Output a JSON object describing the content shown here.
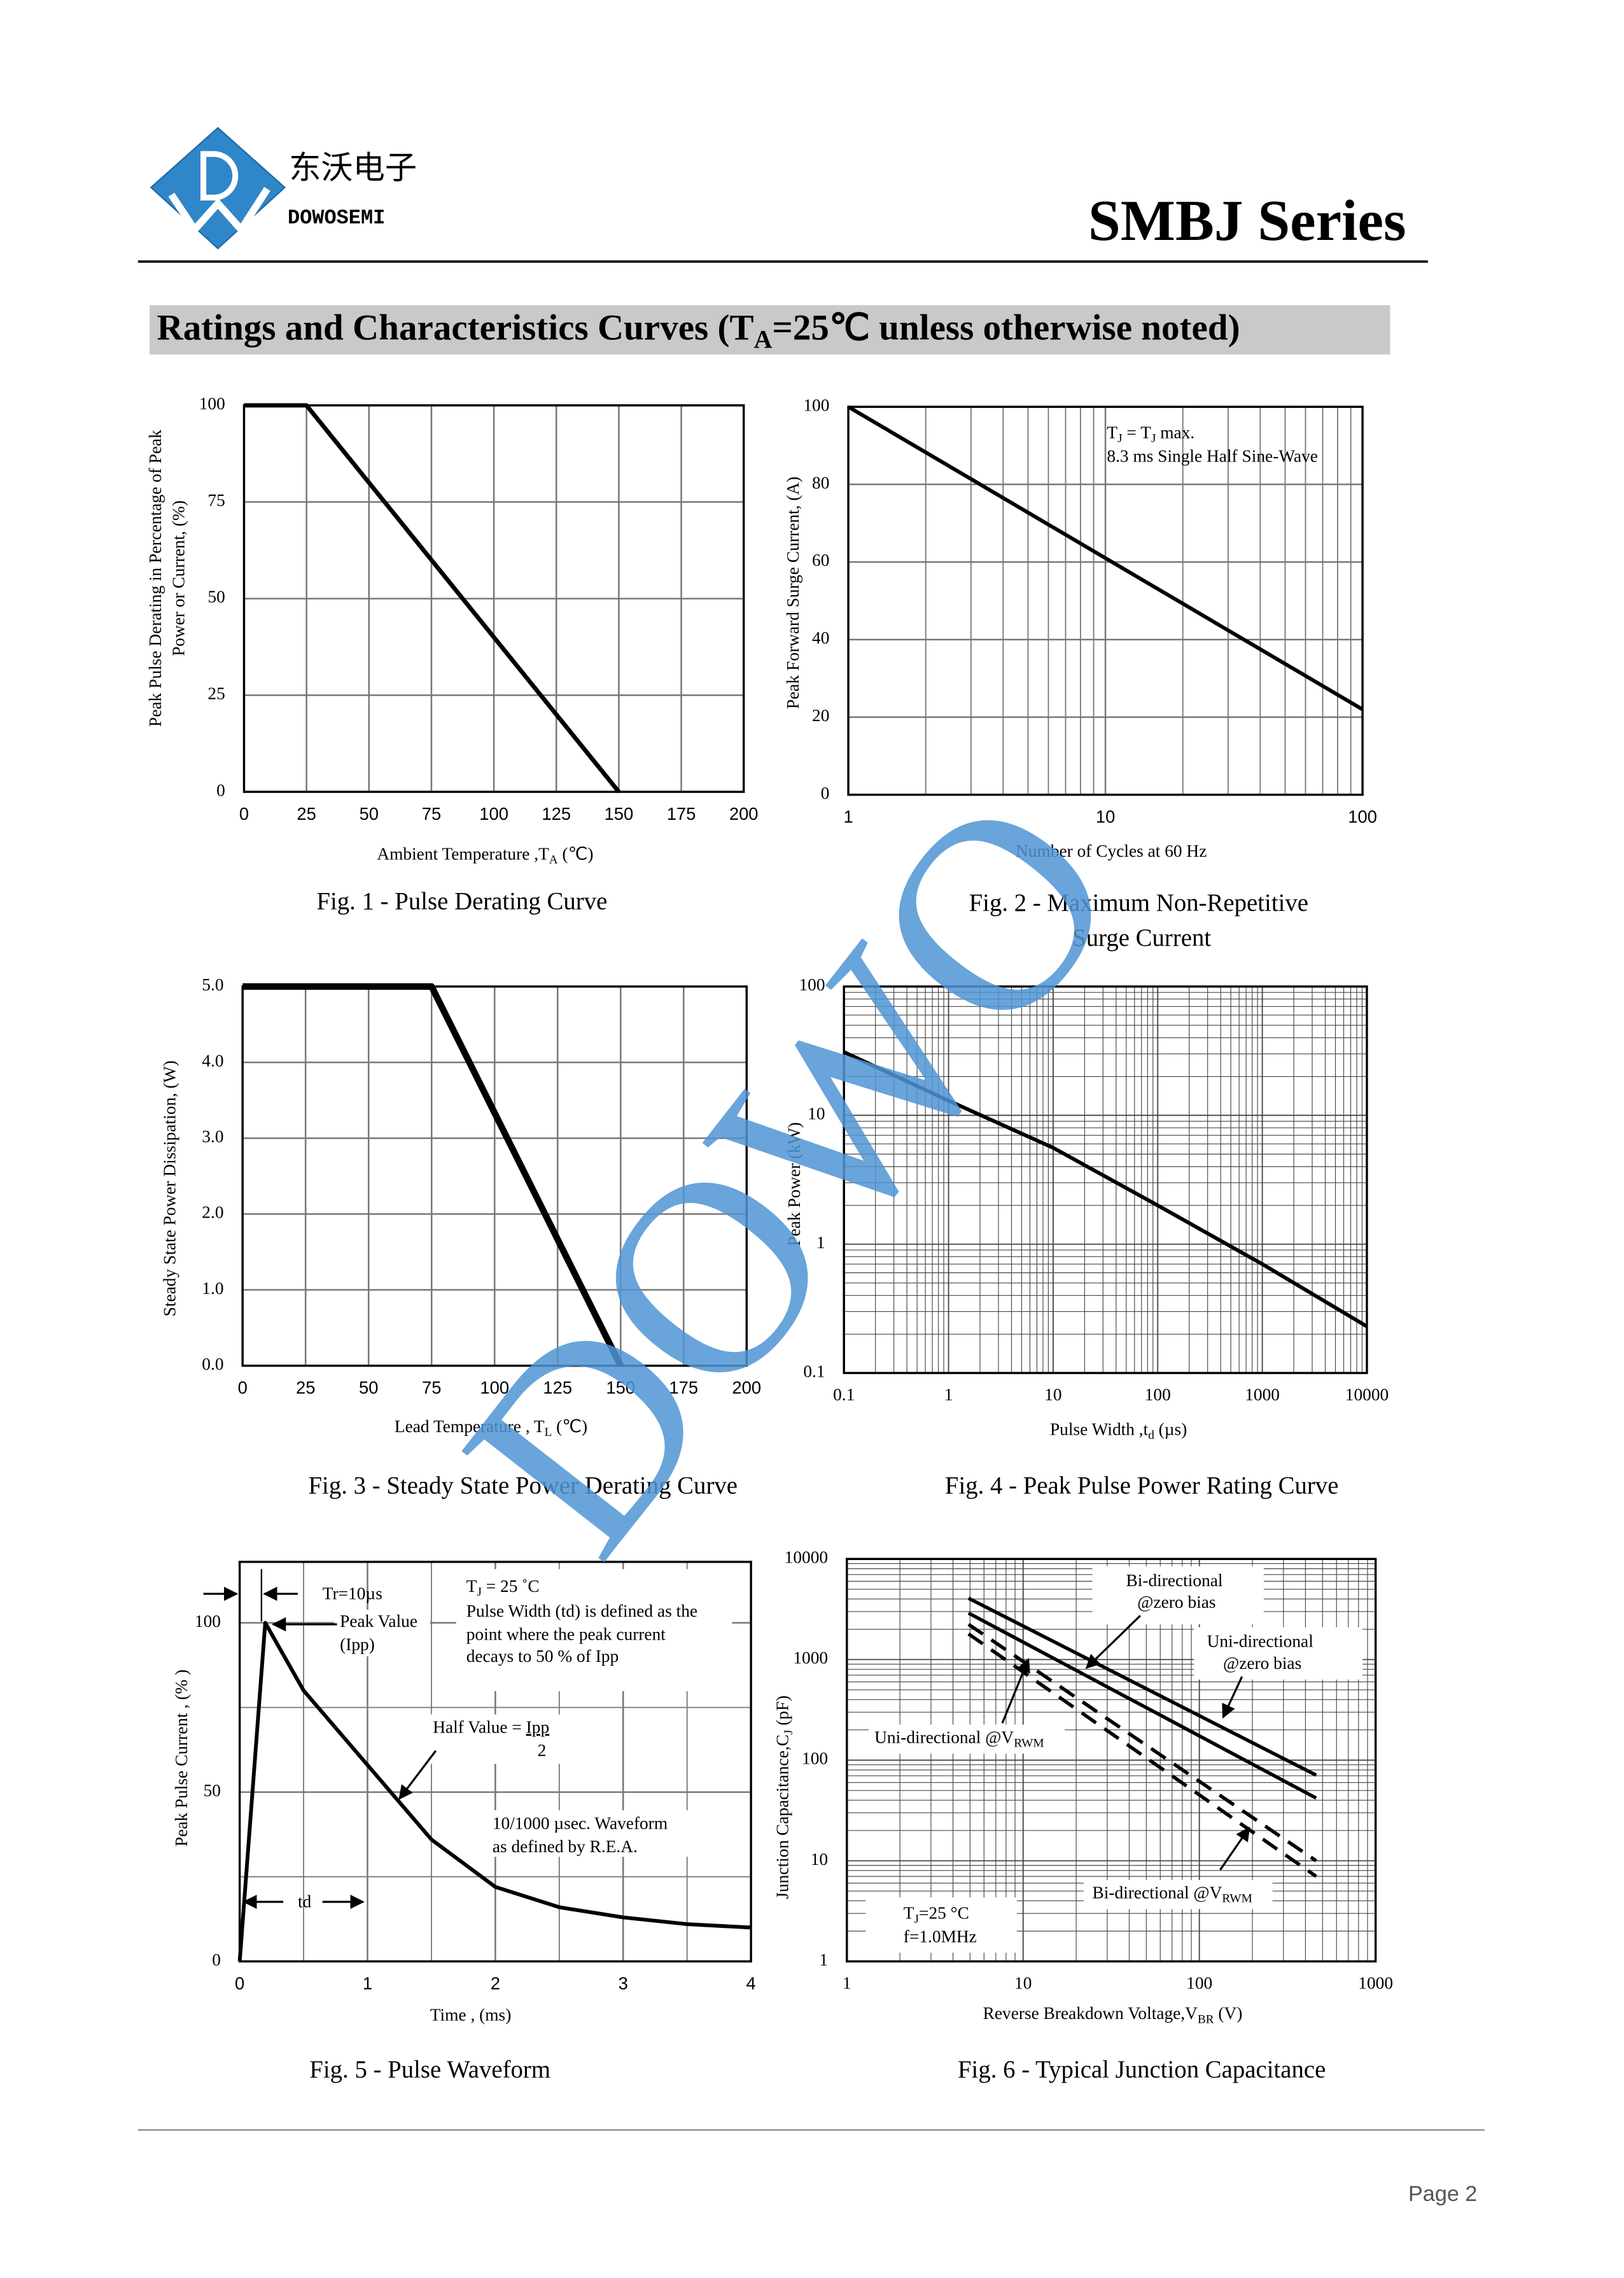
{
  "header": {
    "company_cn": "东沃电子",
    "company_en": "DOWOSEMI",
    "series": "SMBJ Series"
  },
  "section_title": [
    "Ratings and Characteristics Curves (T",
    {
      "sub": "A"
    },
    "=25℃  unless otherwise noted)"
  ],
  "watermark": "DOWO",
  "footer": {
    "page": "Page 2"
  },
  "chart_data": [
    {
      "type": "line",
      "title": "Fig. 1 - Pulse Derating Curve",
      "xlabel": [
        "Ambient Temperature ,T",
        {
          "sub": "A"
        },
        "  (℃)"
      ],
      "ylabel": "Peak Pulse Derating in Percentage of  Peak",
      "ylabel2": "Power or Current, (%)",
      "x": [
        0,
        25,
        150
      ],
      "values": [
        100,
        100,
        0
      ],
      "color": "#000000",
      "xlim": [
        0,
        200
      ],
      "xticks": [
        0,
        25,
        50,
        75,
        100,
        125,
        150,
        175,
        200
      ],
      "ylim": [
        0,
        100
      ],
      "yticks": [
        0,
        25,
        50,
        75,
        100
      ],
      "grid": true
    },
    {
      "type": "line",
      "title": "Fig. 2 - Maximum Non-Repetitive Surge Current",
      "xlabel": "Number of Cycles at 60 Hz",
      "ylabel": "Peak Forward Surge Current, (A)",
      "annotations": [
        [
          "T",
          {
            "sub": "J"
          },
          " = T",
          {
            "sub": "J"
          },
          " max."
        ],
        "8.3 ms Single Half Sine-Wave"
      ],
      "x": [
        1,
        100
      ],
      "values": [
        100,
        22
      ],
      "color": "#000000",
      "xscale": "log",
      "xlim": [
        1,
        100
      ],
      "xticks": [
        1,
        10,
        100
      ],
      "xminor": [
        2,
        3,
        4,
        5,
        6,
        7,
        8,
        9,
        20,
        30,
        40,
        50,
        60,
        70,
        80,
        90
      ],
      "ylim": [
        0,
        100
      ],
      "yticks": [
        0,
        20,
        40,
        60,
        80,
        100
      ],
      "grid": true
    },
    {
      "type": "line",
      "title": "Fig. 3 - Steady State Power Derating Curve",
      "xlabel": [
        "Lead Temperature , T",
        {
          "sub": "L"
        },
        "  (℃)"
      ],
      "ylabel": "Steady State Power Dissipation, (W)",
      "x": [
        0,
        75,
        150
      ],
      "values": [
        5,
        5,
        0
      ],
      "color": "#000000",
      "xlim": [
        0,
        200
      ],
      "xticks": [
        0,
        25,
        50,
        75,
        100,
        125,
        150,
        175,
        200
      ],
      "ylim": [
        0,
        5
      ],
      "yticks": [
        {
          "value": 0,
          "label": "0.0"
        },
        {
          "value": 1,
          "label": "1.0"
        },
        {
          "value": 2,
          "label": "2.0"
        },
        {
          "value": 3,
          "label": "3.0"
        },
        {
          "value": 4,
          "label": "4.0"
        },
        {
          "value": 5,
          "label": "5.0"
        }
      ],
      "grid": true
    },
    {
      "type": "line",
      "title": "Fig. 4 - Peak Pulse Power Rating Curve",
      "xlabel": [
        "Pulse Width ,t",
        {
          "sub": "d"
        },
        " (µs)"
      ],
      "ylabel": "Peak Power  (kW)",
      "x": [
        0.1,
        1,
        10,
        100,
        1000,
        10000
      ],
      "values": [
        31,
        13,
        5.6,
        2.0,
        0.7,
        0.23
      ],
      "color": "#000000",
      "xscale": "log",
      "yscale": "log",
      "xlim": [
        0.1,
        10000
      ],
      "xticks": [
        0.1,
        1,
        10,
        100,
        1000,
        10000
      ],
      "xminor": [
        0.2,
        0.3,
        0.4,
        0.5,
        0.6,
        0.7,
        0.8,
        0.9,
        2,
        3,
        4,
        5,
        6,
        7,
        8,
        9,
        20,
        30,
        40,
        50,
        60,
        70,
        80,
        90,
        200,
        300,
        400,
        500,
        600,
        700,
        800,
        900,
        2000,
        3000,
        4000,
        5000,
        6000,
        7000,
        8000,
        9000
      ],
      "ylim": [
        0.1,
        100
      ],
      "yticks": [
        0.1,
        1,
        10,
        100
      ],
      "yminor": [
        0.2,
        0.3,
        0.4,
        0.5,
        0.6,
        0.7,
        0.8,
        0.9,
        2,
        3,
        4,
        5,
        6,
        7,
        8,
        9,
        20,
        30,
        40,
        50,
        60,
        70,
        80,
        90
      ],
      "grid": true
    },
    {
      "type": "line",
      "title": "Fig. 5 - Pulse Waveform",
      "xlabel": "Time , (ms)",
      "ylabel": "Peak Pulse Current , (% )",
      "annotations": [
        "Tr=10µs",
        "Peak Value",
        "(Ipp)",
        [
          "T",
          {
            "sub": "J"
          },
          " = 25 ˚C"
        ],
        "Pulse Width (td) is defined as the",
        "point where the peak current",
        "decays to 50 % of Ipp",
        [
          "Half Value = ",
          {
            "u": "Ipp"
          }
        ],
        "2",
        "10/1000 µsec. Waveform",
        "as defined by R.E.A.",
        "td"
      ],
      "x": [
        0,
        0.2,
        0.5,
        1,
        1.5,
        2,
        2.5,
        3,
        3.5,
        4
      ],
      "values": [
        0,
        100,
        80,
        58,
        36,
        22,
        16,
        13,
        11,
        10
      ],
      "color": "#000000",
      "xlim": [
        0,
        4
      ],
      "xticks": [
        0,
        1,
        2,
        3,
        4
      ],
      "xminor": [
        0.5,
        1.5,
        2.5,
        3.5
      ],
      "ylim": [
        0,
        118
      ],
      "yticks": [
        0,
        50,
        100
      ],
      "yminor": [
        25,
        75
      ],
      "grid": true
    },
    {
      "type": "line",
      "title": "Fig. 6 - Typical Junction Capacitance",
      "xlabel": [
        "Reverse  Breakdown Voltage,V",
        {
          "sub": "BR"
        },
        "  (V)"
      ],
      "ylabel": [
        "Junction Capacitance,C",
        {
          "sub": "J"
        },
        "  (pF)"
      ],
      "annotations": [
        [
          "T",
          {
            "sub": "J"
          },
          "=25 °C"
        ],
        "f=1.0MHz"
      ],
      "x": [
        4.9,
        460
      ],
      "series": [
        {
          "name": "Bi-directional @zero bias",
          "color": "#000000",
          "values": [
            4070,
            71
          ]
        },
        {
          "name": "Uni-directional @zero bias",
          "color": "#000000",
          "values": [
            2900,
            42
          ],
          "dash": false
        },
        {
          "name": "Uni-directional @V",
          "name_sub": "RWM",
          "color": "#000000",
          "values": [
            2240,
            10
          ],
          "dash": true
        },
        {
          "name": "Bi-directional @V",
          "name_sub": "RWM",
          "color": "#000000",
          "values": [
            1800,
            7
          ],
          "dash": true
        }
      ],
      "xscale": "log",
      "yscale": "log",
      "xlim": [
        1,
        1000
      ],
      "xticks": [
        1,
        10,
        100,
        1000
      ],
      "xminor": [
        2,
        3,
        4,
        5,
        6,
        7,
        8,
        9,
        20,
        30,
        40,
        50,
        60,
        70,
        80,
        90,
        200,
        300,
        400,
        500,
        600,
        700,
        800,
        900
      ],
      "ylim": [
        1,
        10000
      ],
      "yticks": [
        1,
        10,
        100,
        1000,
        10000
      ],
      "yminor": [
        2,
        3,
        4,
        5,
        6,
        7,
        8,
        9,
        20,
        30,
        40,
        50,
        60,
        70,
        80,
        90,
        200,
        300,
        400,
        500,
        600,
        700,
        800,
        900,
        2000,
        3000,
        4000,
        5000,
        6000,
        7000,
        8000,
        9000
      ],
      "grid": true
    }
  ]
}
